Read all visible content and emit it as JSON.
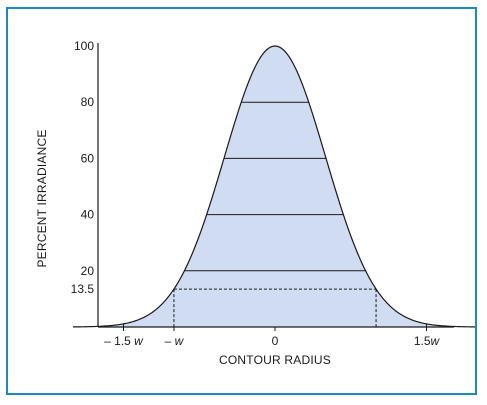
{
  "chart_data": {
    "type": "area",
    "title": "",
    "xlabel": "CONTOUR RADIUS",
    "ylabel": "PERCENT IRRADIANCE",
    "curve": "gaussian",
    "peak": 100,
    "xlim": [
      -2.0,
      2.0
    ],
    "ylim": [
      0,
      100
    ],
    "y_ticks": [
      {
        "value": 100,
        "label": "100"
      },
      {
        "value": 80,
        "label": "80"
      },
      {
        "value": 60,
        "label": "60"
      },
      {
        "value": 40,
        "label": "40"
      },
      {
        "value": 20,
        "label": "20"
      },
      {
        "value": 13.5,
        "label": "13.5"
      }
    ],
    "x_ticks": [
      {
        "value": -1.5,
        "prefix": "– 1.5",
        "var": "w"
      },
      {
        "value": -1.0,
        "prefix": "–",
        "var": "w"
      },
      {
        "value": 0,
        "prefix": "0",
        "var": ""
      },
      {
        "value": 1.5,
        "prefix": "1.5",
        "var": "w"
      }
    ],
    "contour_levels": [
      80,
      60,
      40,
      20
    ],
    "dashed_level": 13.5,
    "grid": false,
    "fill_color": "#cfdcf1",
    "line_color": "#1a1a1a",
    "frame_color": "#1a8ac6"
  }
}
